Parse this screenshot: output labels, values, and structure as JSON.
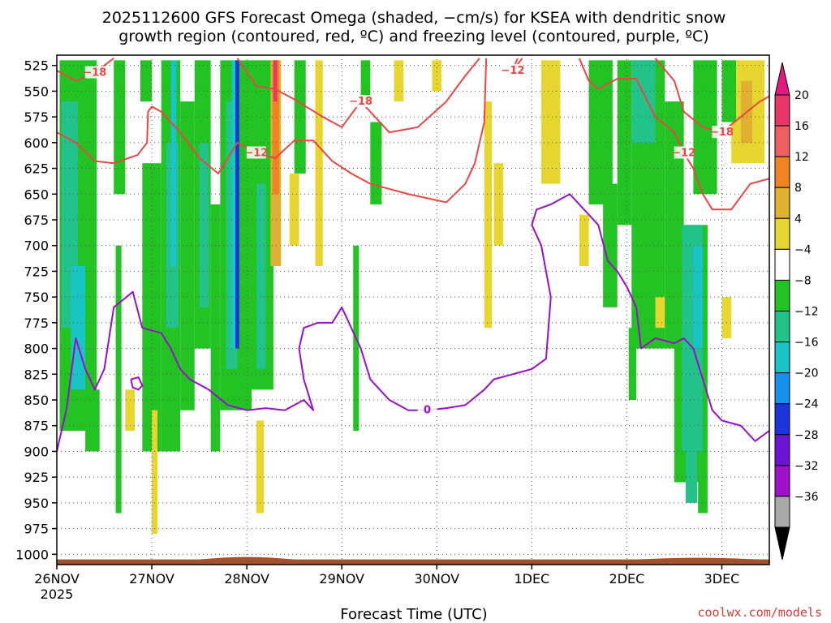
{
  "chart_data": {
    "type": "heatmap",
    "title_lines": [
      "2025112600 GFS Forecast Omega (shaded, −cm/s) for KSEA with dendritic snow",
      "growth region (contoured, red, ºC) and freezing level (contoured, purple, ºC)"
    ],
    "xlabel": "Forecast Time (UTC)",
    "credit": "coolwx.com/models",
    "x_ticks": [
      {
        "t": 0,
        "label": "26NOV",
        "sub": "2025"
      },
      {
        "t": 1,
        "label": "27NOV",
        "sub": ""
      },
      {
        "t": 2,
        "label": "28NOV",
        "sub": ""
      },
      {
        "t": 3,
        "label": "29NOV",
        "sub": ""
      },
      {
        "t": 4,
        "label": "30NOV",
        "sub": ""
      },
      {
        "t": 5,
        "label": "1DEC",
        "sub": ""
      },
      {
        "t": 6,
        "label": "2DEC",
        "sub": ""
      },
      {
        "t": 7,
        "label": "3DEC",
        "sub": ""
      }
    ],
    "xlim": [
      0,
      7.5
    ],
    "y_ticks": [
      525,
      550,
      575,
      600,
      625,
      650,
      675,
      700,
      725,
      750,
      775,
      800,
      825,
      850,
      875,
      900,
      925,
      950,
      975,
      1000
    ],
    "ylim": [
      515,
      1010
    ],
    "grid": true,
    "colorbar": {
      "labels": [
        "20",
        "16",
        "12",
        "8",
        "4",
        "−4",
        "−8",
        "−12",
        "−16",
        "−20",
        "−24",
        "−28",
        "−32",
        "−36"
      ],
      "colors": [
        "#e8366a",
        "#ee6060",
        "#ee8422",
        "#e0b030",
        "#e8d630",
        "#ffffff",
        "#22c322",
        "#22c28a",
        "#18c4c4",
        "#1890ee",
        "#1c34dc",
        "#6c14d4",
        "#a010c8",
        "#a8a8a8"
      ],
      "top_arrow_color": "#e01880",
      "bottom_arrow_color": "#000000"
    },
    "shading": [
      {
        "t0": 0.03,
        "t1": 0.42,
        "p0": 520,
        "p1": 880,
        "v": -8
      },
      {
        "t0": 0.05,
        "t1": 0.22,
        "p0": 560,
        "p1": 780,
        "v": -12
      },
      {
        "t0": 0.15,
        "t1": 0.3,
        "p0": 720,
        "p1": 840,
        "v": -16
      },
      {
        "t0": 0.3,
        "t1": 0.45,
        "p0": 840,
        "p1": 900,
        "v": -8
      },
      {
        "t0": 0.6,
        "t1": 0.72,
        "p0": 520,
        "p1": 650,
        "v": -8
      },
      {
        "t0": 0.62,
        "t1": 0.68,
        "p0": 700,
        "p1": 960,
        "v": -8
      },
      {
        "t0": 0.9,
        "t1": 1.1,
        "p0": 620,
        "p1": 900,
        "v": -8
      },
      {
        "t0": 0.88,
        "t1": 1.0,
        "p0": 520,
        "p1": 560,
        "v": -8
      },
      {
        "t0": 1.1,
        "t1": 1.3,
        "p0": 520,
        "p1": 900,
        "v": -8
      },
      {
        "t0": 1.15,
        "t1": 1.28,
        "p0": 600,
        "p1": 780,
        "v": -12
      },
      {
        "t0": 1.2,
        "t1": 1.26,
        "p0": 520,
        "p1": 720,
        "v": -16
      },
      {
        "t0": 1.3,
        "t1": 1.45,
        "p0": 560,
        "p1": 860,
        "v": -8
      },
      {
        "t0": 1.45,
        "t1": 1.62,
        "p0": 520,
        "p1": 800,
        "v": -8
      },
      {
        "t0": 1.5,
        "t1": 1.6,
        "p0": 600,
        "p1": 760,
        "v": -12
      },
      {
        "t0": 1.62,
        "t1": 1.72,
        "p0": 660,
        "p1": 900,
        "v": -8
      },
      {
        "t0": 1.72,
        "t1": 2.05,
        "p0": 520,
        "p1": 860,
        "v": -8
      },
      {
        "t0": 1.78,
        "t1": 1.9,
        "p0": 560,
        "p1": 820,
        "v": -12
      },
      {
        "t0": 1.84,
        "t1": 1.9,
        "p0": 520,
        "p1": 800,
        "v": -16
      },
      {
        "t0": 1.88,
        "t1": 1.92,
        "p0": 520,
        "p1": 800,
        "v": -24
      },
      {
        "t0": 2.05,
        "t1": 2.28,
        "p0": 520,
        "p1": 840,
        "v": -8
      },
      {
        "t0": 2.1,
        "t1": 2.2,
        "p0": 640,
        "p1": 820,
        "v": -12
      },
      {
        "t0": 2.25,
        "t1": 2.36,
        "p0": 520,
        "p1": 720,
        "v": 8
      },
      {
        "t0": 2.27,
        "t1": 2.34,
        "p0": 520,
        "p1": 650,
        "v": 12
      },
      {
        "t0": 2.28,
        "t1": 2.32,
        "p0": 520,
        "p1": 560,
        "v": 20
      },
      {
        "t0": 2.1,
        "t1": 2.18,
        "p0": 870,
        "p1": 960,
        "v": 4
      },
      {
        "t0": 1.0,
        "t1": 1.06,
        "p0": 860,
        "p1": 980,
        "v": 4
      },
      {
        "t0": 0.72,
        "t1": 0.82,
        "p0": 840,
        "p1": 880,
        "v": 4
      },
      {
        "t0": 2.5,
        "t1": 2.62,
        "p0": 520,
        "p1": 630,
        "v": -8
      },
      {
        "t0": 2.45,
        "t1": 2.55,
        "p0": 630,
        "p1": 700,
        "v": 4
      },
      {
        "t0": 2.72,
        "t1": 2.8,
        "p0": 520,
        "p1": 720,
        "v": 4
      },
      {
        "t0": 3.12,
        "t1": 3.18,
        "p0": 700,
        "p1": 880,
        "v": -8
      },
      {
        "t0": 3.2,
        "t1": 3.3,
        "p0": 520,
        "p1": 560,
        "v": -8
      },
      {
        "t0": 3.3,
        "t1": 3.42,
        "p0": 580,
        "p1": 660,
        "v": -8
      },
      {
        "t0": 3.55,
        "t1": 3.65,
        "p0": 520,
        "p1": 560,
        "v": 4
      },
      {
        "t0": 3.95,
        "t1": 4.05,
        "p0": 520,
        "p1": 550,
        "v": 4
      },
      {
        "t0": 4.5,
        "t1": 4.58,
        "p0": 560,
        "p1": 780,
        "v": 4
      },
      {
        "t0": 4.6,
        "t1": 4.7,
        "p0": 620,
        "p1": 700,
        "v": 4
      },
      {
        "t0": 5.1,
        "t1": 5.3,
        "p0": 520,
        "p1": 640,
        "v": 4
      },
      {
        "t0": 5.5,
        "t1": 5.6,
        "p0": 670,
        "p1": 720,
        "v": 4
      },
      {
        "t0": 5.6,
        "t1": 5.85,
        "p0": 520,
        "p1": 660,
        "v": -8
      },
      {
        "t0": 5.75,
        "t1": 5.9,
        "p0": 640,
        "p1": 760,
        "v": -8
      },
      {
        "t0": 5.9,
        "t1": 6.05,
        "p0": 520,
        "p1": 680,
        "v": -8
      },
      {
        "t0": 6.05,
        "t1": 6.4,
        "p0": 520,
        "p1": 800,
        "v": -8
      },
      {
        "t0": 6.05,
        "t1": 6.3,
        "p0": 520,
        "p1": 600,
        "v": -12
      },
      {
        "t0": 6.02,
        "t1": 6.1,
        "p0": 780,
        "p1": 850,
        "v": -8
      },
      {
        "t0": 6.3,
        "t1": 6.4,
        "p0": 750,
        "p1": 780,
        "v": 4
      },
      {
        "t0": 6.4,
        "t1": 6.6,
        "p0": 560,
        "p1": 800,
        "v": -8
      },
      {
        "t0": 6.5,
        "t1": 6.85,
        "p0": 680,
        "p1": 930,
        "v": -8
      },
      {
        "t0": 6.58,
        "t1": 6.8,
        "p0": 680,
        "p1": 900,
        "v": -12
      },
      {
        "t0": 6.7,
        "t1": 6.8,
        "p0": 700,
        "p1": 800,
        "v": -16
      },
      {
        "t0": 6.7,
        "t1": 6.95,
        "p0": 520,
        "p1": 650,
        "v": -8
      },
      {
        "t0": 6.62,
        "t1": 6.74,
        "p0": 850,
        "p1": 950,
        "v": -12
      },
      {
        "t0": 6.75,
        "t1": 6.85,
        "p0": 930,
        "p1": 960,
        "v": -8
      },
      {
        "t0": 7.0,
        "t1": 7.1,
        "p0": 750,
        "p1": 790,
        "v": 4
      },
      {
        "t0": 7.1,
        "t1": 7.45,
        "p0": 520,
        "p1": 620,
        "v": 4
      },
      {
        "t0": 7.2,
        "t1": 7.32,
        "p0": 540,
        "p1": 600,
        "v": 8
      },
      {
        "t0": 7.0,
        "t1": 7.15,
        "p0": 520,
        "p1": 580,
        "v": -8
      }
    ],
    "contours_dgz": [
      {
        "label": "−18",
        "points": [
          [
            0,
            530
          ],
          [
            0.2,
            540
          ],
          [
            0.4,
            532
          ],
          [
            0.6,
            518
          ]
        ]
      },
      {
        "label": "−12",
        "points": [
          [
            0,
            590
          ],
          [
            0.2,
            600
          ],
          [
            0.4,
            618
          ],
          [
            0.6,
            620
          ],
          [
            0.85,
            612
          ],
          [
            0.95,
            600
          ],
          [
            0.96,
            570
          ],
          [
            1.0,
            565
          ],
          [
            1.1,
            570
          ],
          [
            1.3,
            590
          ],
          [
            1.5,
            615
          ],
          [
            1.7,
            630
          ],
          [
            1.9,
            600
          ],
          [
            2.1,
            610
          ],
          [
            2.3,
            615
          ],
          [
            2.5,
            598
          ],
          [
            2.7,
            598
          ],
          [
            2.9,
            618
          ],
          [
            3.1,
            630
          ],
          [
            3.3,
            640
          ],
          [
            3.5,
            645
          ],
          [
            3.7,
            650
          ],
          [
            4.1,
            658
          ],
          [
            4.3,
            640
          ],
          [
            4.4,
            620
          ],
          [
            4.5,
            580
          ],
          [
            4.52,
            518
          ]
        ]
      },
      {
        "label": "−18",
        "points": [
          [
            1.9,
            518
          ],
          [
            2.1,
            545
          ],
          [
            2.3,
            548
          ],
          [
            2.5,
            558
          ],
          [
            2.8,
            575
          ],
          [
            3.0,
            585
          ],
          [
            3.2,
            560
          ],
          [
            3.5,
            590
          ],
          [
            3.8,
            585
          ],
          [
            4.1,
            560
          ],
          [
            4.3,
            535
          ],
          [
            4.45,
            518
          ]
        ]
      },
      {
        "label": "−12",
        "points": [
          [
            4.9,
            518
          ],
          [
            4.8,
            530
          ],
          [
            4.85,
            518
          ]
        ]
      },
      {
        "label": "−12",
        "points": [
          [
            5.5,
            518
          ],
          [
            5.6,
            540
          ],
          [
            5.7,
            548
          ],
          [
            5.9,
            538
          ],
          [
            6.1,
            538
          ],
          [
            6.3,
            575
          ],
          [
            6.5,
            590
          ],
          [
            6.6,
            610
          ],
          [
            6.7,
            625
          ],
          [
            6.8,
            650
          ],
          [
            6.9,
            665
          ],
          [
            7.1,
            665
          ],
          [
            7.3,
            640
          ],
          [
            7.5,
            635
          ]
        ]
      },
      {
        "label": "−18",
        "points": [
          [
            6.3,
            518
          ],
          [
            6.5,
            540
          ],
          [
            6.6,
            570
          ],
          [
            6.8,
            585
          ],
          [
            7.0,
            590
          ],
          [
            7.2,
            575
          ],
          [
            7.4,
            560
          ],
          [
            7.5,
            555
          ]
        ]
      }
    ],
    "contours_frz": [
      {
        "label": "0",
        "points": [
          [
            0,
            900
          ],
          [
            0.1,
            860
          ],
          [
            0.2,
            790
          ],
          [
            0.3,
            820
          ],
          [
            0.4,
            840
          ],
          [
            0.5,
            820
          ],
          [
            0.6,
            760
          ],
          [
            0.8,
            745
          ],
          [
            0.9,
            780
          ],
          [
            1.1,
            785
          ],
          [
            1.2,
            800
          ],
          [
            1.3,
            820
          ],
          [
            1.4,
            830
          ],
          [
            1.6,
            840
          ],
          [
            1.8,
            855
          ],
          [
            2.0,
            860
          ],
          [
            2.2,
            858
          ],
          [
            2.4,
            860
          ],
          [
            2.6,
            850
          ],
          [
            2.7,
            860
          ],
          [
            2.6,
            830
          ],
          [
            2.55,
            800
          ],
          [
            2.6,
            780
          ],
          [
            2.75,
            775
          ],
          [
            2.9,
            775
          ],
          [
            3.0,
            760
          ],
          [
            3.1,
            780
          ],
          [
            3.2,
            800
          ],
          [
            3.3,
            830
          ],
          [
            3.5,
            850
          ],
          [
            3.7,
            860
          ],
          [
            3.9,
            860
          ],
          [
            4.1,
            858
          ],
          [
            4.3,
            855
          ],
          [
            4.5,
            840
          ],
          [
            4.6,
            830
          ],
          [
            4.8,
            825
          ],
          [
            5.0,
            820
          ],
          [
            5.15,
            810
          ],
          [
            5.2,
            750
          ],
          [
            5.1,
            700
          ],
          [
            5.0,
            680
          ],
          [
            5.05,
            665
          ],
          [
            5.2,
            660
          ],
          [
            5.4,
            650
          ],
          [
            5.55,
            665
          ],
          [
            5.7,
            680
          ],
          [
            5.8,
            715
          ],
          [
            5.9,
            725
          ],
          [
            6.0,
            740
          ],
          [
            6.1,
            760
          ],
          [
            6.15,
            800
          ],
          [
            6.3,
            790
          ],
          [
            6.5,
            795
          ],
          [
            6.6,
            790
          ],
          [
            6.7,
            800
          ],
          [
            6.8,
            830
          ],
          [
            6.9,
            860
          ],
          [
            7.0,
            870
          ],
          [
            7.2,
            875
          ],
          [
            7.35,
            890
          ],
          [
            7.5,
            880
          ]
        ]
      },
      {
        "label": "",
        "points": [
          [
            0.78,
            830
          ],
          [
            0.86,
            828
          ],
          [
            0.9,
            836
          ],
          [
            0.86,
            840
          ],
          [
            0.8,
            838
          ],
          [
            0.78,
            830
          ]
        ]
      }
    ],
    "terrain_surface_hpa": 1005
  }
}
